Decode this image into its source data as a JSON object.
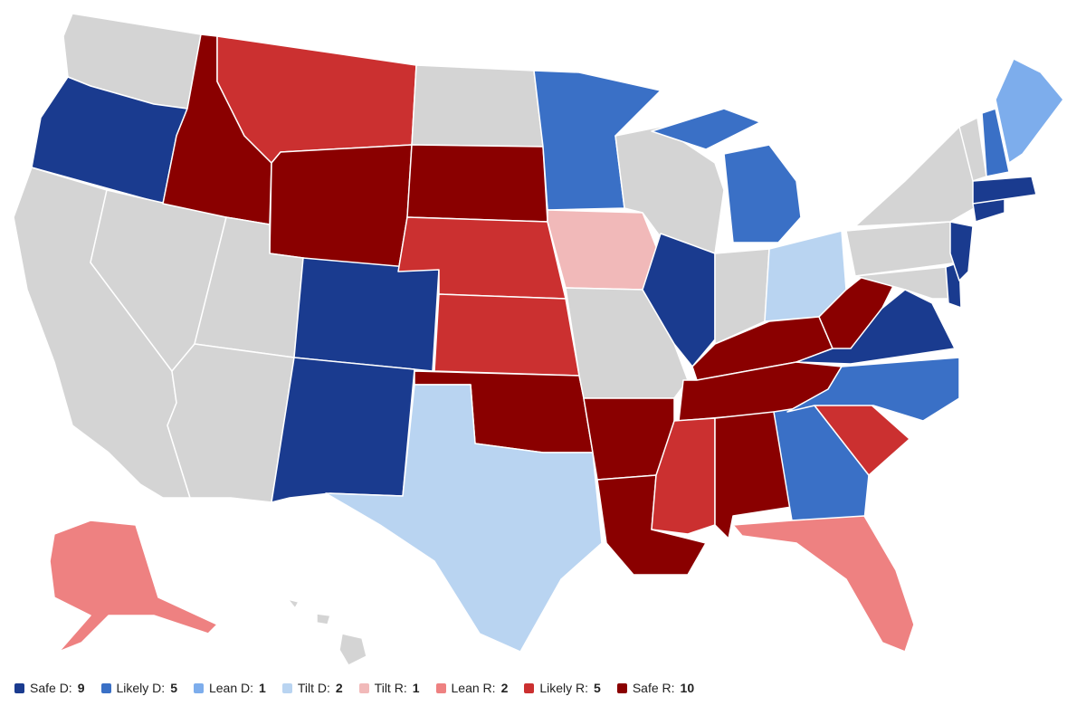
{
  "legend": [
    {
      "name": "Safe D:",
      "count": 9,
      "color": "#1a3b8f"
    },
    {
      "name": "Likely D:",
      "count": 5,
      "color": "#3a70c6"
    },
    {
      "name": "Lean D:",
      "count": 1,
      "color": "#7dadec"
    },
    {
      "name": "Tilt D:",
      "count": 2,
      "color": "#b9d4f1"
    },
    {
      "name": "Tilt R:",
      "count": 1,
      "color": "#f1b9b9"
    },
    {
      "name": "Lean R:",
      "count": 2,
      "color": "#ee8181"
    },
    {
      "name": "Likely R:",
      "count": 5,
      "color": "#cb3030"
    },
    {
      "name": "Safe R:",
      "count": 10,
      "color": "#8a0000"
    }
  ]
}
